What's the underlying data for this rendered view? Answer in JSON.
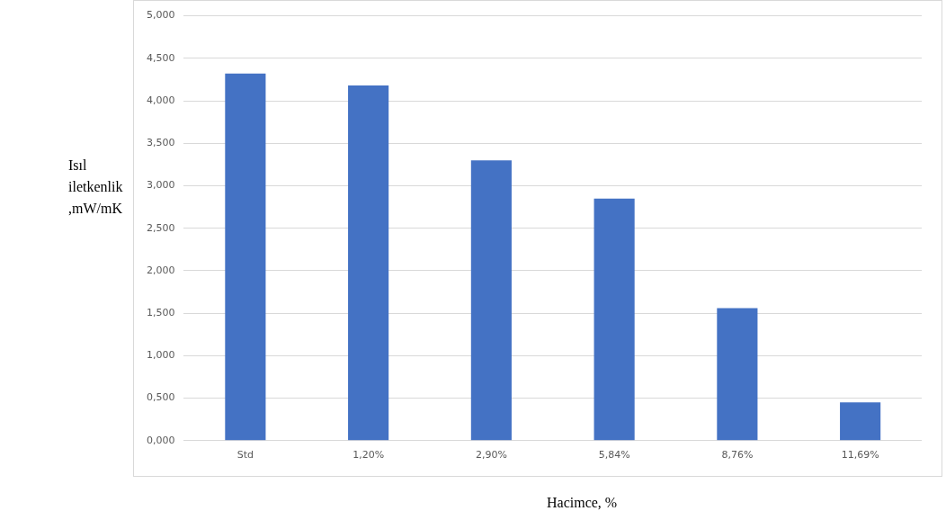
{
  "chart_data": {
    "type": "bar",
    "xlabel": "Hacimce, %",
    "ylabel": "Isıl iletkenlik ,mW/mK",
    "categories": [
      "Std",
      "1,20%",
      "2,90%",
      "5,84%",
      "8,76%",
      "11,69%"
    ],
    "values": [
      4.32,
      4.18,
      3.3,
      2.85,
      1.56,
      0.45
    ],
    "color": "#4472c4",
    "ylim": [
      0,
      5
    ],
    "yticks": [
      {
        "value": 0,
        "label": "0,000"
      },
      {
        "value": 0.5,
        "label": "0,500"
      },
      {
        "value": 1,
        "label": "1,000"
      },
      {
        "value": 1.5,
        "label": "1,500"
      },
      {
        "value": 2,
        "label": "2,000"
      },
      {
        "value": 2.5,
        "label": "2,500"
      },
      {
        "value": 3,
        "label": "3,000"
      },
      {
        "value": 3.5,
        "label": "3,500"
      },
      {
        "value": 4,
        "label": "4,000"
      },
      {
        "value": 4.5,
        "label": "4,500"
      },
      {
        "value": 5,
        "label": "5,000"
      }
    ],
    "grid": "y",
    "legend": false
  }
}
